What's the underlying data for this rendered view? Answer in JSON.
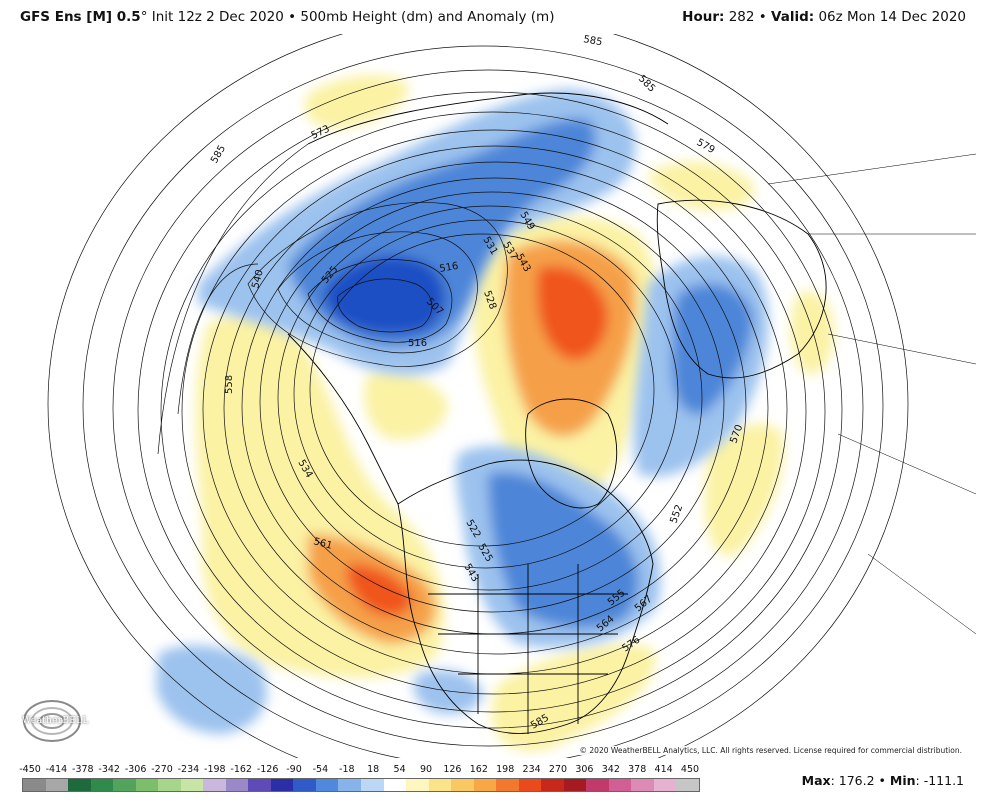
{
  "header": {
    "model": "GFS Ens [M] 0.5",
    "degree": "°",
    "init": " Init 12z 2 Dec 2020 • 500mb Height (dm) and Anomaly (m)",
    "hour_label": "Hour:",
    "hour_value": " 282 • ",
    "valid_label": "Valid:",
    "valid_value": " 06z Mon 14 Dec 2020"
  },
  "map": {
    "contour_labels": [
      "585",
      "573",
      "579",
      "585",
      "549",
      "540",
      "531",
      "537",
      "543",
      "525",
      "516",
      "507",
      "516",
      "528",
      "558",
      "534",
      "561",
      "522",
      "543",
      "525",
      "570",
      "552",
      "555",
      "567",
      "564",
      "576",
      "585",
      "585"
    ],
    "colors": {
      "deep_blue": "#1f4fc4",
      "mid_blue": "#4d86d8",
      "light_blue": "#9cc2ee",
      "pale_yellow": "#fbf2a4",
      "orange": "#f5a04a",
      "red_orange": "#f0541e"
    }
  },
  "logo": {
    "text": "WeatherBELL"
  },
  "copyright": "© 2020 WeatherBELL Analytics, LLC. All rights reserved. License required for commercial distribution.",
  "colorbar": {
    "ticks": [
      "-450",
      "-414",
      "-378",
      "-342",
      "-306",
      "-270",
      "-234",
      "-198",
      "-162",
      "-126",
      "-90",
      "-54",
      "-18",
      "18",
      "54",
      "90",
      "126",
      "162",
      "198",
      "234",
      "270",
      "306",
      "342",
      "378",
      "414",
      "450"
    ],
    "colors": [
      "#8a8a8a",
      "#a7a7a7",
      "#1d6b3c",
      "#2f8a4c",
      "#52a45c",
      "#7cbf6a",
      "#a7d68a",
      "#c7e6a6",
      "#c9b8dc",
      "#9b88c9",
      "#5f4bb8",
      "#2a2fa8",
      "#2f5bc9",
      "#4f88dc",
      "#86b4ea",
      "#bcd6f5",
      "#ffffff",
      "#fdf6bf",
      "#fbe38a",
      "#f9c862",
      "#f7a845",
      "#f3782e",
      "#ea4a1c",
      "#c8281a",
      "#a61a22",
      "#c23a6a",
      "#d15f93",
      "#dd8ab4",
      "#e7b2cf",
      "#c6c6c6"
    ],
    "max_label": "Max",
    "max_value": ": 176.2 • ",
    "min_label": "Min",
    "min_value": ": -111.1"
  }
}
